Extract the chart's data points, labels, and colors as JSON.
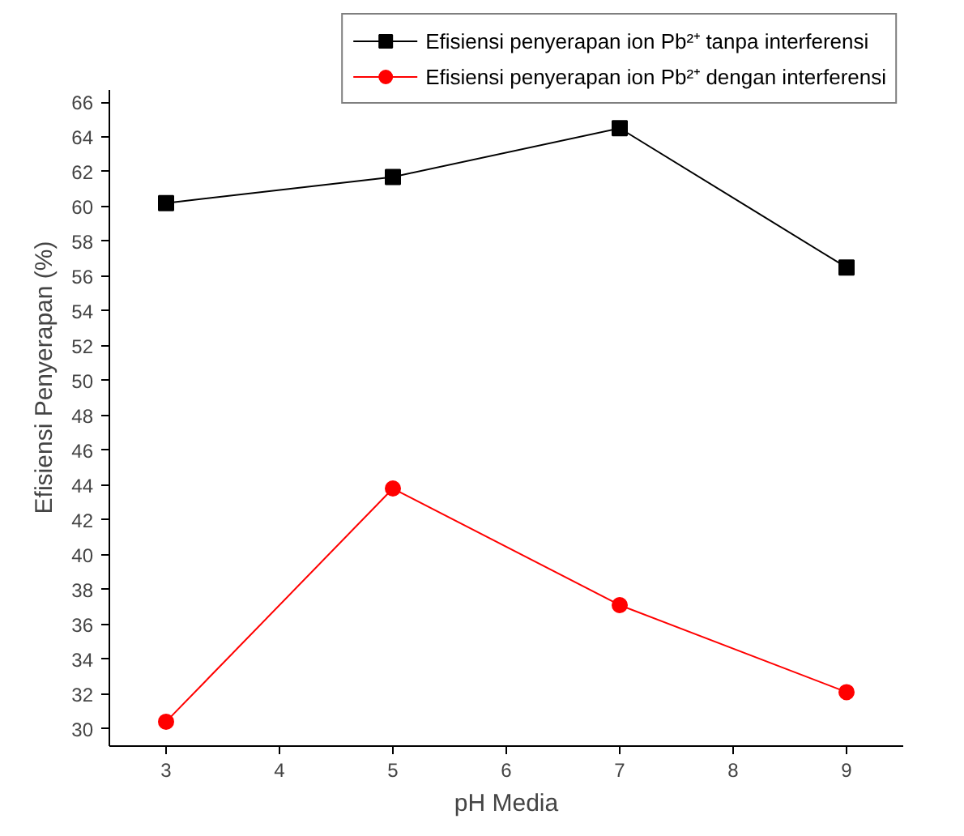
{
  "chart_data": {
    "type": "line",
    "xlabel": "pH Media",
    "ylabel": "Efisiensi Penyerapan (%)",
    "x": [
      3,
      5,
      7,
      9
    ],
    "series": [
      {
        "name": "Efisiensi penyerapan ion Pb²⁺ tanpa interferensi",
        "color": "#000000",
        "marker": "square",
        "values": [
          60.2,
          61.7,
          64.5,
          56.5
        ]
      },
      {
        "name": "Efisiensi penyerapan ion Pb²⁺ dengan interferensi",
        "color": "#ff0000",
        "marker": "circle",
        "values": [
          30.4,
          43.8,
          37.1,
          32.1
        ]
      }
    ],
    "xlim": [
      2.5,
      9.5
    ],
    "xticks": [
      3,
      4,
      5,
      6,
      7,
      8,
      9
    ],
    "ylim": [
      29,
      66.7
    ],
    "yticks": [
      30,
      32,
      34,
      36,
      38,
      40,
      42,
      44,
      46,
      48,
      50,
      52,
      54,
      56,
      58,
      60,
      62,
      64,
      66
    ],
    "grid": false,
    "legend": "top right",
    "line_style": "solid"
  }
}
